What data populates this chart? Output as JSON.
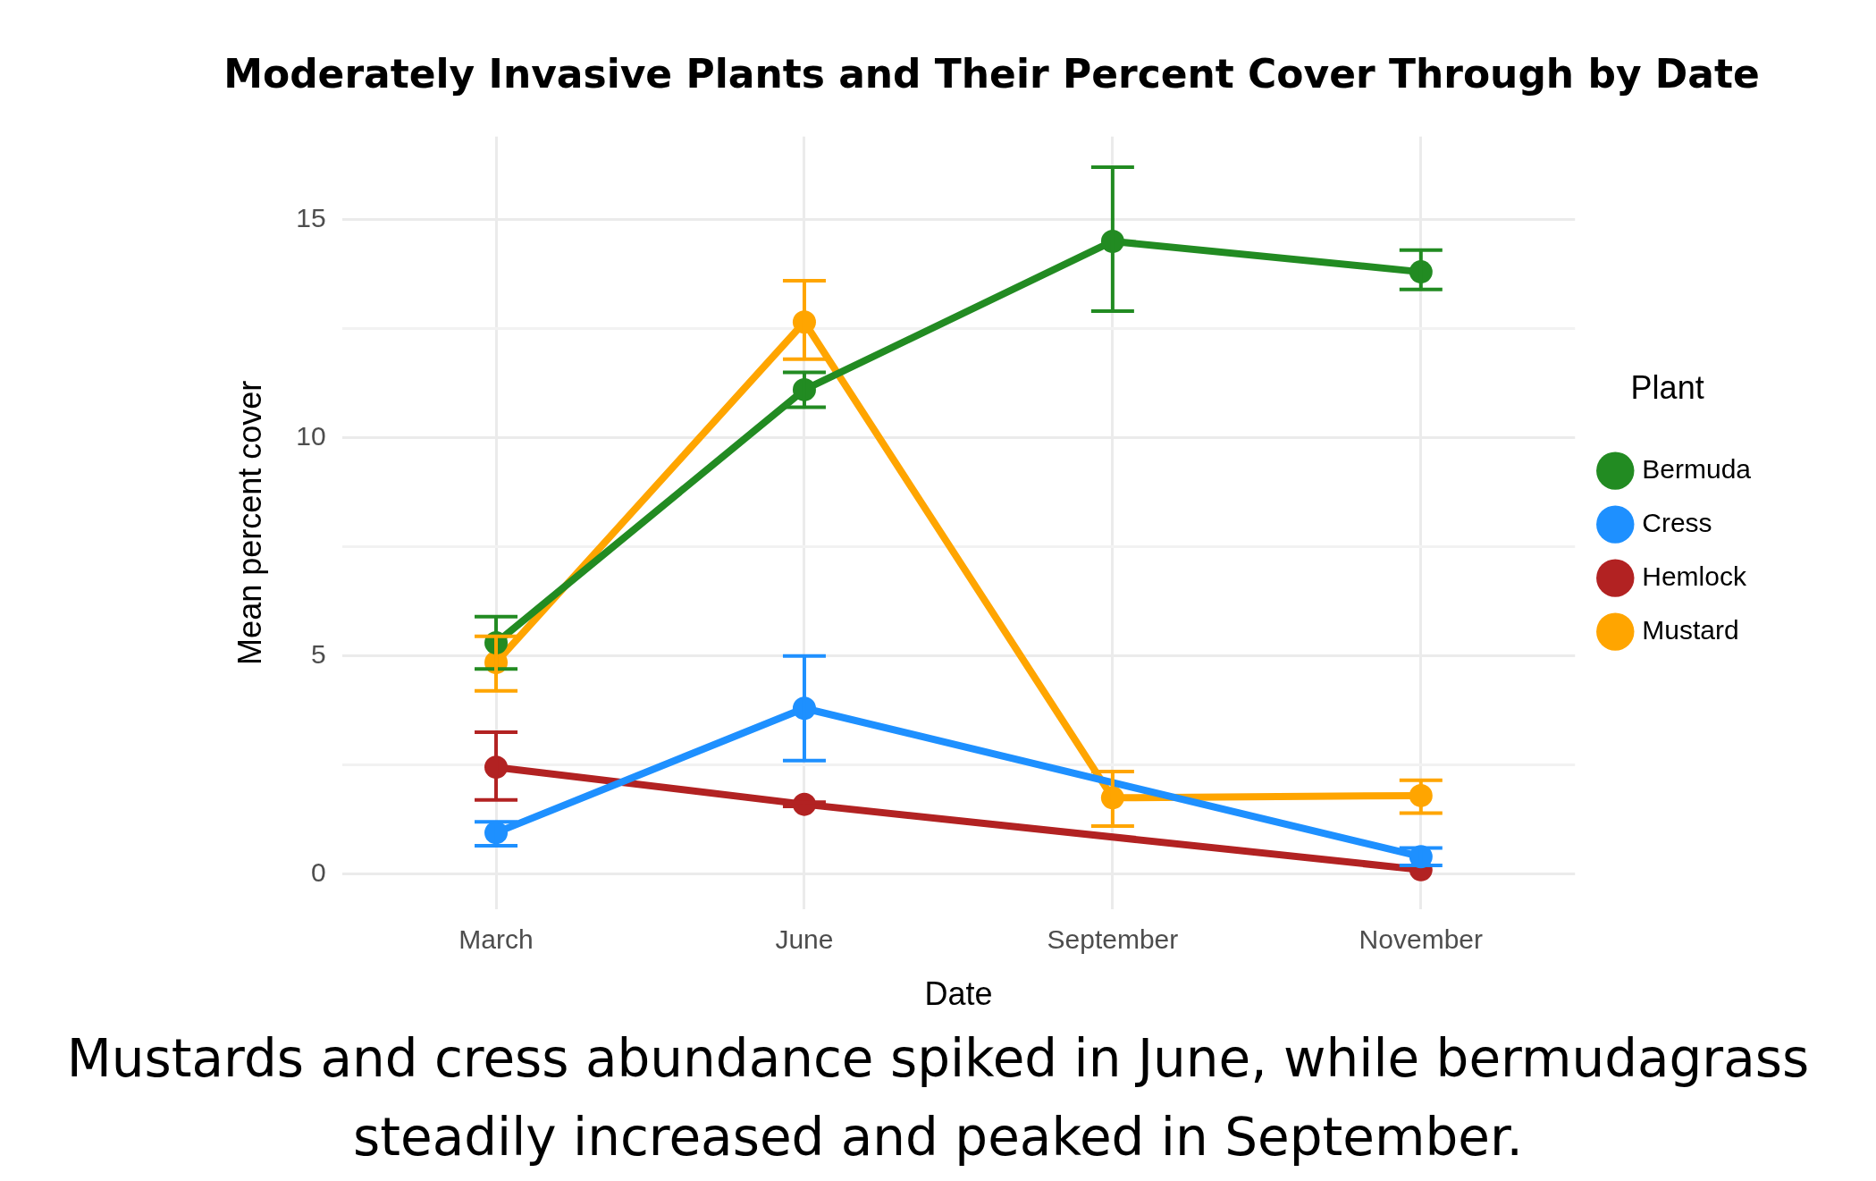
{
  "chart_data": {
    "type": "line",
    "title": "Moderately Invasive Plants and Their Percent Cover Through by Date",
    "xlabel": "Date",
    "ylabel": "Mean percent cover",
    "legend_title": "Plant",
    "categories": [
      "March",
      "June",
      "September",
      "November"
    ],
    "series": [
      {
        "name": "Bermuda",
        "color": "#228b22",
        "values": [
          5.3,
          11.1,
          14.5,
          13.8
        ],
        "errors": [
          [
            4.7,
            5.9
          ],
          [
            10.7,
            11.5
          ],
          [
            12.9,
            16.2
          ],
          [
            13.4,
            14.3
          ]
        ]
      },
      {
        "name": "Cress",
        "color": "#1e90ff",
        "values": [
          0.95,
          3.8,
          null,
          0.4
        ],
        "errors": [
          [
            0.65,
            1.2
          ],
          [
            2.6,
            5.0
          ],
          null,
          [
            0.2,
            0.6
          ]
        ]
      },
      {
        "name": "Hemlock",
        "color": "#b22222",
        "values": [
          2.45,
          1.6,
          null,
          0.1
        ],
        "errors": [
          [
            1.7,
            3.25
          ],
          [
            1.55,
            1.65
          ],
          null,
          null
        ]
      },
      {
        "name": "Mustard",
        "color": "#ffa500",
        "values": [
          4.85,
          12.65,
          1.75,
          1.8
        ],
        "errors": [
          [
            4.2,
            5.45
          ],
          [
            11.8,
            13.6
          ],
          [
            1.1,
            2.35
          ],
          [
            1.4,
            2.15
          ]
        ]
      }
    ],
    "ylim": [
      -0.8,
      16.9
    ],
    "yticks": [
      0,
      {
        "value": 2.5,
        "label": null
      },
      5,
      {
        "value": 7.5,
        "label": null
      },
      10,
      {
        "value": 12.5,
        "label": null
      },
      15
    ],
    "grid": true,
    "legend": "right",
    "marker": "circle",
    "line_style": "solid",
    "annotations": [
      "Mustards and cress abundance spiked in June, while bermudagrass steadily increased and peaked in September."
    ]
  }
}
